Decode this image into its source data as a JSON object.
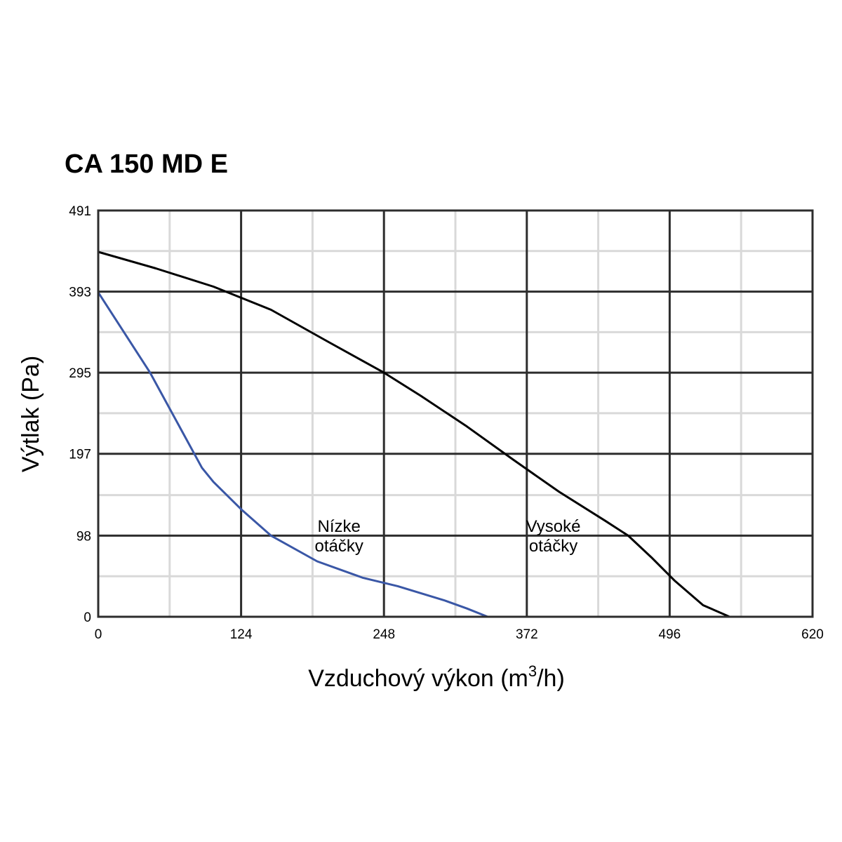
{
  "chart_data": {
    "type": "line",
    "title": "CA 150 MD E",
    "xlabel": "Vzduchový výkon (m",
    "xlabel_sup": "3",
    "xlabel_end": "/h)",
    "ylabel": "Výtlak (Pa)",
    "xlim": [
      0,
      620
    ],
    "ylim": [
      0,
      491
    ],
    "x_ticks": [
      "0",
      "124",
      "248",
      "372",
      "496",
      "620"
    ],
    "y_ticks": [
      "0",
      "98",
      "197",
      "295",
      "393",
      "491"
    ],
    "x_tick_values": [
      0,
      124,
      248,
      372,
      496,
      620
    ],
    "y_tick_values": [
      0,
      98,
      197,
      295,
      393,
      491
    ],
    "minor_x_values": [
      62,
      186,
      310,
      434,
      558
    ],
    "minor_y_values": [
      49,
      147,
      246,
      344,
      442
    ],
    "grid": true,
    "series": [
      {
        "name": "Vysoké otáčky",
        "label_lines": [
          "Vysoké",
          "otáčky"
        ],
        "label_at": [
          395,
          96
        ],
        "color": "#000000",
        "x": [
          0,
          50,
          100,
          150,
          200,
          248,
          280,
          320,
          360,
          400,
          440,
          460,
          480,
          500,
          525,
          548
        ],
        "y": [
          441,
          421,
          399,
          371,
          332,
          295,
          267,
          230,
          190,
          151,
          116,
          98,
          72,
          44,
          14,
          0
        ]
      },
      {
        "name": "Nízke otáčky",
        "label_lines": [
          "Nízke",
          "otáčky"
        ],
        "label_at": [
          209,
          96
        ],
        "color": "#3a57a6",
        "x": [
          0,
          45,
          90,
          100,
          124,
          150,
          190,
          230,
          260,
          300,
          320,
          338
        ],
        "y": [
          392,
          295,
          180,
          163,
          130,
          98,
          67,
          47,
          37,
          20,
          10,
          0
        ]
      }
    ]
  }
}
